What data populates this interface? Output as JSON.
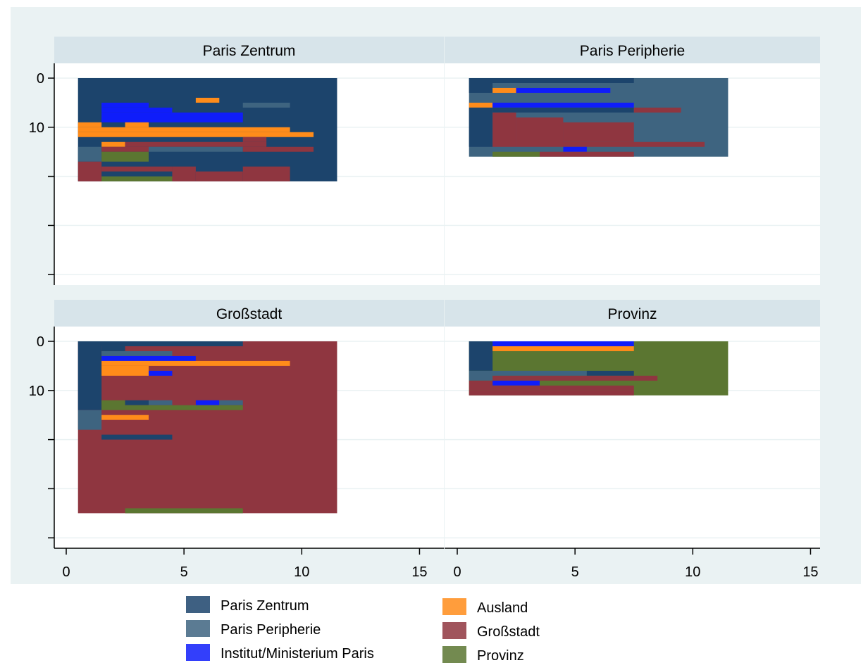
{
  "chart_data": {
    "type": "heatmap",
    "title": "",
    "xlabel": "",
    "ylabel": "",
    "xlim": [
      0,
      15
    ],
    "x_ticks": [
      "0",
      "5",
      "10",
      "15"
    ],
    "y_ticks": [
      "0",
      "10"
    ],
    "grid": true,
    "legend_placement": "bottom",
    "categories": [
      {
        "key": "PZ",
        "name": "Paris Zentrum",
        "color": "#1c446c"
      },
      {
        "key": "PP",
        "name": "Paris Peripherie",
        "color": "#3e6480"
      },
      {
        "key": "IM",
        "name": "Institut/Ministerium Paris",
        "color": "#0f1dfa"
      },
      {
        "key": "AU",
        "name": "Ausland",
        "color": "#ff8c1a"
      },
      {
        "key": "GS",
        "name": "Großstadt",
        "color": "#8f3640"
      },
      {
        "key": "PR",
        "name": "Provinz",
        "color": "#5b7631"
      }
    ],
    "legend_layout": [
      [
        "PZ",
        "AU"
      ],
      [
        "PP",
        "GS"
      ],
      [
        "IM",
        "PR"
      ]
    ],
    "panels": [
      {
        "title": "Paris Zentrum",
        "base": "PZ",
        "x_range": [
          0.5,
          11.5
        ],
        "y_range": [
          0,
          21
        ],
        "cells": [
          [
            5.5,
            6.5,
            4,
            5,
            "AU"
          ],
          [
            7.5,
            9.5,
            5,
            6,
            "PP"
          ],
          [
            1.5,
            3.5,
            5,
            6,
            "IM"
          ],
          [
            1.5,
            4.5,
            6,
            7,
            "IM"
          ],
          [
            1.5,
            7.5,
            7,
            9,
            "IM"
          ],
          [
            0.5,
            1.5,
            9,
            10,
            "AU"
          ],
          [
            2.5,
            3.5,
            9,
            10,
            "AU"
          ],
          [
            0.5,
            9.5,
            10,
            11,
            "AU"
          ],
          [
            0.5,
            10.5,
            11,
            12,
            "AU"
          ],
          [
            7.5,
            8.5,
            12,
            13,
            "GS"
          ],
          [
            1.5,
            2.5,
            13,
            14,
            "AU"
          ],
          [
            2.5,
            8.5,
            13,
            14,
            "GS"
          ],
          [
            0.5,
            1.5,
            14,
            17,
            "PP"
          ],
          [
            1.5,
            3.5,
            14,
            15,
            "GS"
          ],
          [
            3.5,
            7.5,
            14,
            15,
            "PP"
          ],
          [
            7.5,
            10.5,
            14,
            15,
            "GS"
          ],
          [
            1.5,
            3.5,
            15,
            17,
            "PR"
          ],
          [
            0.5,
            1.5,
            17,
            21,
            "GS"
          ],
          [
            1.5,
            4.5,
            18,
            19,
            "GS"
          ],
          [
            4.5,
            5.5,
            18,
            21,
            "GS"
          ],
          [
            5.5,
            7.5,
            19,
            21,
            "GS"
          ],
          [
            7.5,
            9.5,
            18,
            21,
            "GS"
          ],
          [
            1.5,
            4.5,
            20,
            21,
            "PR"
          ]
        ]
      },
      {
        "title": "Paris Peripherie",
        "base": "PP",
        "x_range": [
          0.5,
          11.5
        ],
        "y_range": [
          0,
          16
        ],
        "cells": [
          [
            0.5,
            7.5,
            0,
            1,
            "PZ"
          ],
          [
            0.5,
            1.5,
            1,
            3,
            "PZ"
          ],
          [
            1.5,
            2.5,
            2,
            3,
            "AU"
          ],
          [
            2.5,
            6.5,
            2,
            3,
            "IM"
          ],
          [
            0.5,
            1.5,
            5,
            6,
            "AU"
          ],
          [
            1.5,
            7.5,
            5,
            6,
            "IM"
          ],
          [
            0.5,
            1.5,
            6,
            14,
            "PZ"
          ],
          [
            1.5,
            7.5,
            6,
            7,
            "PZ"
          ],
          [
            7.5,
            9.5,
            6,
            7,
            "GS"
          ],
          [
            1.5,
            2.5,
            7,
            14,
            "GS"
          ],
          [
            2.5,
            4.5,
            8,
            14,
            "GS"
          ],
          [
            4.5,
            7.5,
            9,
            13,
            "GS"
          ],
          [
            4.5,
            10.5,
            13,
            14,
            "GS"
          ],
          [
            4.5,
            5.5,
            14,
            15,
            "IM"
          ],
          [
            1.5,
            3.5,
            15,
            16,
            "PR"
          ],
          [
            3.5,
            7.5,
            15,
            16,
            "GS"
          ]
        ]
      },
      {
        "title": "Großstadt",
        "base": "GS",
        "x_range": [
          0.5,
          11.5
        ],
        "y_range": [
          0,
          35
        ],
        "cells": [
          [
            0.5,
            7.5,
            0,
            1,
            "PZ"
          ],
          [
            0.5,
            1.5,
            1,
            14,
            "PZ"
          ],
          [
            1.5,
            2.5,
            1,
            2,
            "PZ"
          ],
          [
            1.5,
            4.5,
            2,
            3,
            "PP"
          ],
          [
            1.5,
            5.5,
            3,
            4,
            "IM"
          ],
          [
            1.5,
            9.5,
            4,
            5,
            "AU"
          ],
          [
            1.5,
            3.5,
            5,
            7,
            "AU"
          ],
          [
            3.5,
            4.5,
            6,
            7,
            "IM"
          ],
          [
            1.5,
            2.5,
            12,
            14,
            "PR"
          ],
          [
            2.5,
            3.5,
            12,
            13,
            "PZ"
          ],
          [
            3.5,
            4.5,
            12,
            13,
            "PP"
          ],
          [
            5.5,
            6.5,
            12,
            13,
            "IM"
          ],
          [
            6.5,
            7.5,
            12,
            13,
            "PP"
          ],
          [
            2.5,
            7.5,
            13,
            14,
            "PR"
          ],
          [
            0.5,
            1.5,
            14,
            18,
            "PP"
          ],
          [
            1.5,
            3.5,
            15,
            16,
            "AU"
          ],
          [
            1.5,
            4.5,
            19,
            20,
            "PZ"
          ],
          [
            2.5,
            7.5,
            34,
            35,
            "PR"
          ]
        ]
      },
      {
        "title": "Provinz",
        "base": "PR",
        "x_range": [
          0.5,
          11.5
        ],
        "y_range": [
          0,
          11
        ],
        "cells": [
          [
            0.5,
            1.5,
            0,
            6,
            "PZ"
          ],
          [
            1.5,
            7.5,
            0,
            1,
            "IM"
          ],
          [
            1.5,
            7.5,
            1,
            2,
            "AU"
          ],
          [
            0.5,
            1.5,
            6,
            8,
            "PP"
          ],
          [
            1.5,
            5.5,
            6,
            7,
            "PP"
          ],
          [
            5.5,
            7.5,
            6,
            7,
            "PZ"
          ],
          [
            1.5,
            7.5,
            7,
            8,
            "GS"
          ],
          [
            7.5,
            8.5,
            7,
            8,
            "GS"
          ],
          [
            0.5,
            1.5,
            8,
            10,
            "GS"
          ],
          [
            1.5,
            3.5,
            8,
            9,
            "IM"
          ],
          [
            1.5,
            7.5,
            9,
            10,
            "GS"
          ],
          [
            0.5,
            7.5,
            10,
            11,
            "GS"
          ]
        ]
      }
    ]
  }
}
